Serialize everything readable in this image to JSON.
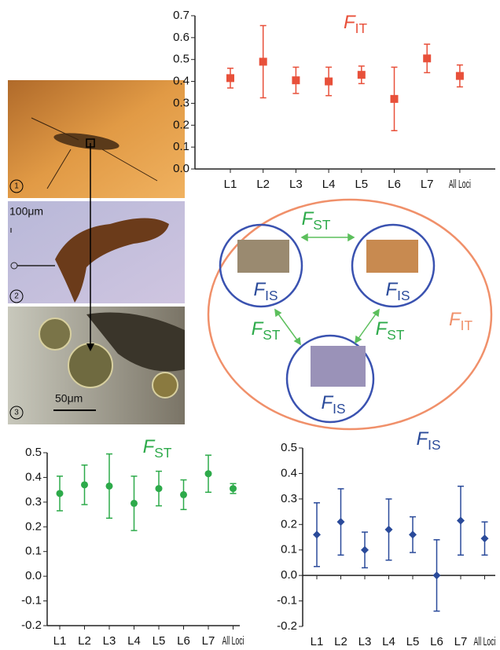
{
  "chart_data": [
    {
      "type": "errorbar",
      "title_symbol": "F",
      "title_subscript": "IT",
      "marker": "square",
      "color": "#e8503a",
      "categories": [
        "L1",
        "L2",
        "L3",
        "L4",
        "L5",
        "L6",
        "L7",
        "All Loci"
      ],
      "values": [
        0.415,
        0.49,
        0.405,
        0.4,
        0.43,
        0.32,
        0.505,
        0.425
      ],
      "errors": [
        0.045,
        0.165,
        0.06,
        0.065,
        0.04,
        0.145,
        0.065,
        0.05
      ],
      "ylim": [
        0,
        0.7
      ],
      "yticks": [
        {
          "value": 0,
          "label": "0.0"
        },
        0.1,
        0.2,
        0.3,
        0.4,
        0.5,
        0.6,
        0.7
      ],
      "zero_line": false
    },
    {
      "type": "errorbar",
      "title_symbol": "F",
      "title_subscript": "ST",
      "marker": "circle",
      "color": "#2daa4a",
      "categories": [
        "L1",
        "L2",
        "L3",
        "L4",
        "L5",
        "L6",
        "L7",
        "All Loci"
      ],
      "values": [
        0.335,
        0.37,
        0.365,
        0.295,
        0.355,
        0.33,
        0.415,
        0.355
      ],
      "errors": [
        0.07,
        0.08,
        0.13,
        0.11,
        0.07,
        0.06,
        0.075,
        0.02
      ],
      "ylim": [
        -0.2,
        0.5
      ],
      "yticks": [
        -0.2,
        -0.1,
        {
          "value": 0,
          "label": "0.0"
        },
        0.1,
        0.2,
        0.3,
        0.4,
        0.5
      ],
      "zero_line": false
    },
    {
      "type": "errorbar",
      "title_symbol": "F",
      "title_subscript": "IS",
      "marker": "diamond",
      "color": "#2a4a9a",
      "categories": [
        "L1",
        "L2",
        "L3",
        "L4",
        "L5",
        "L6",
        "L7",
        "All Loci"
      ],
      "values": [
        0.16,
        0.21,
        0.1,
        0.18,
        0.16,
        0.0,
        0.215,
        0.145
      ],
      "errors": [
        0.125,
        0.13,
        0.07,
        0.12,
        0.07,
        0.14,
        0.135,
        0.065
      ],
      "ylim": [
        -0.2,
        0.5
      ],
      "yticks": [
        -0.2,
        -0.1,
        {
          "value": 0,
          "label": "0.0"
        },
        0.1,
        0.2,
        0.3,
        0.4,
        0.5
      ],
      "zero_line": true
    }
  ],
  "diagram": {
    "labels": [
      {
        "symbol": "F",
        "subscript": "ST"
      },
      {
        "symbol": "F",
        "subscript": "IS"
      },
      {
        "symbol": "F",
        "subscript": "IS"
      },
      {
        "symbol": "F",
        "subscript": "IS"
      },
      {
        "symbol": "F",
        "subscript": "ST"
      },
      {
        "symbol": "F",
        "subscript": "ST"
      },
      {
        "symbol": "F",
        "subscript": "IT"
      }
    ]
  },
  "photos": {
    "panel_numbers": [
      "1",
      "2",
      "3"
    ],
    "scale_bars": [
      "100μm",
      "50μm"
    ]
  }
}
